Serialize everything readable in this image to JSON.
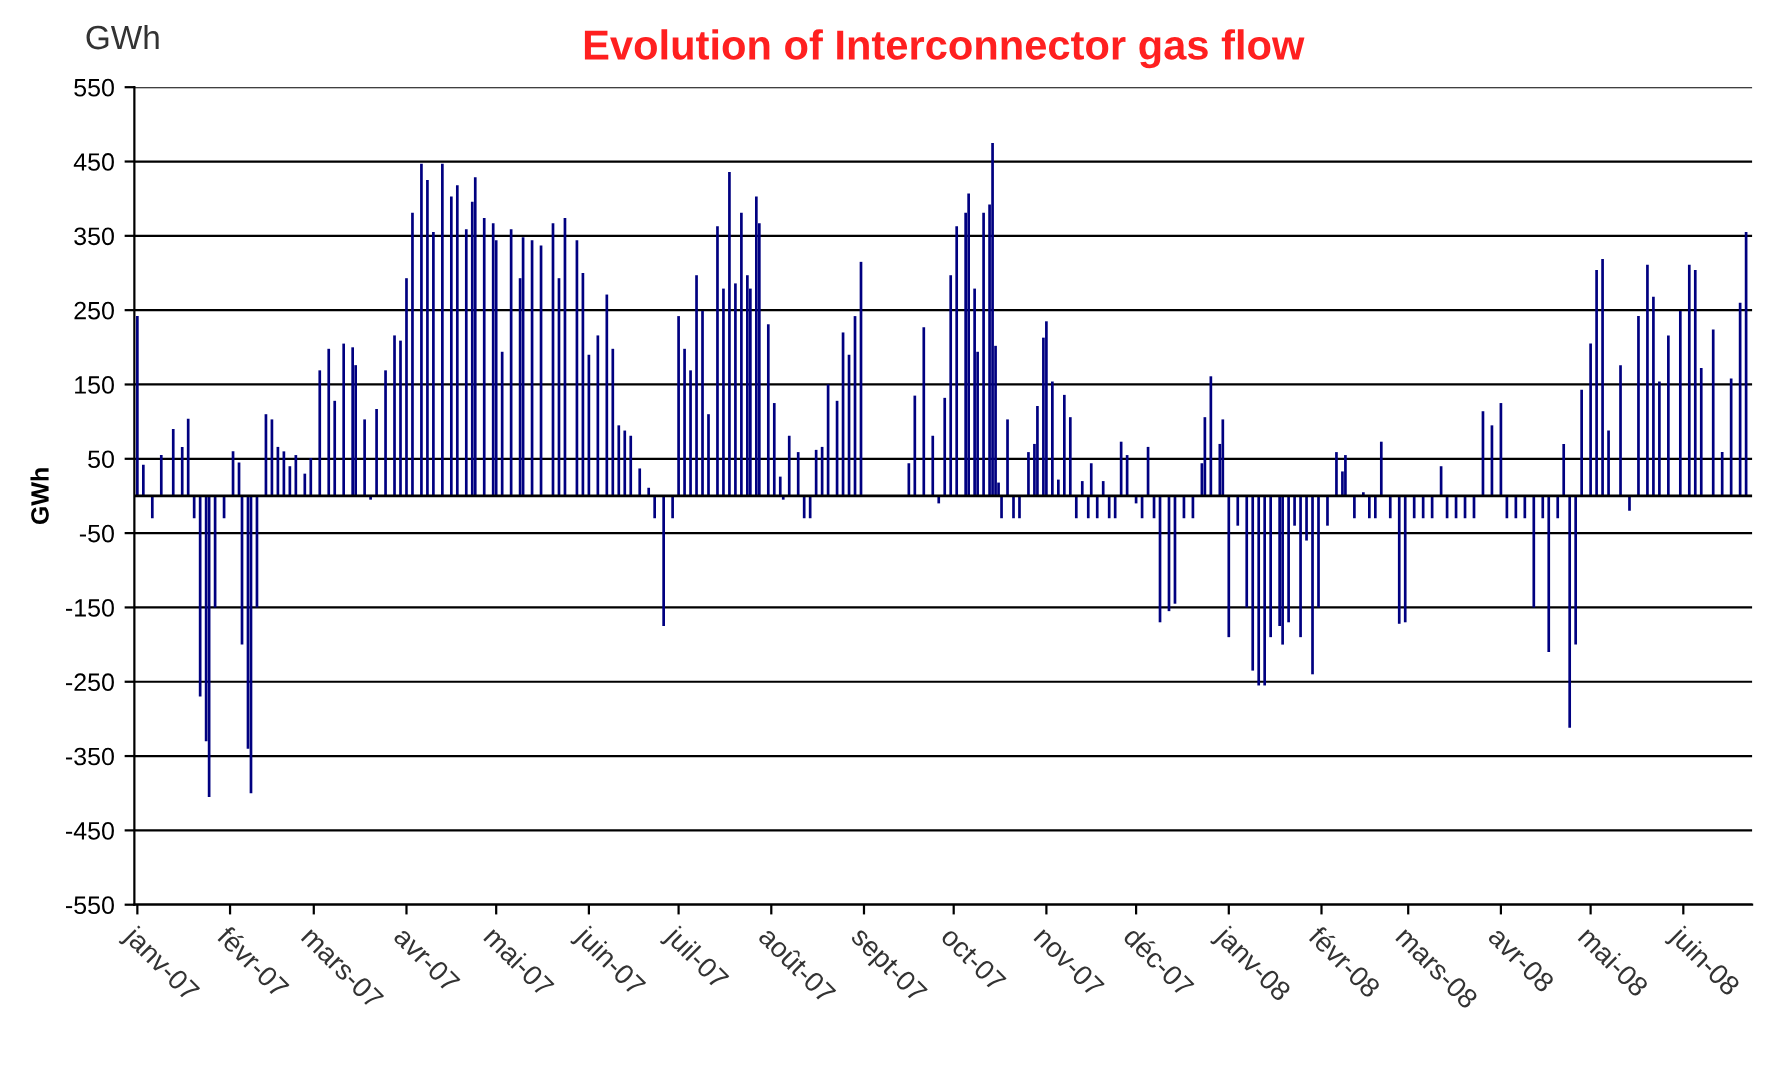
{
  "chart_data": {
    "type": "bar",
    "title": "Evolution of Interconnector gas flow",
    "ylabel": "GWh",
    "annotations": [
      "GWh"
    ],
    "color": "#000080",
    "x": [
      "2007-01-01",
      "2007-01-03",
      "2007-01-06",
      "2007-01-09",
      "2007-01-13",
      "2007-01-16",
      "2007-01-18",
      "2007-01-20",
      "2007-01-22",
      "2007-01-24",
      "2007-01-25",
      "2007-01-27",
      "2007-01-30",
      "2007-02-02",
      "2007-02-04",
      "2007-02-05",
      "2007-02-07",
      "2007-02-08",
      "2007-02-10",
      "2007-02-13",
      "2007-02-15",
      "2007-02-17",
      "2007-02-19",
      "2007-02-21",
      "2007-02-23",
      "2007-02-26",
      "2007-02-28",
      "2007-03-03",
      "2007-03-06",
      "2007-03-08",
      "2007-03-11",
      "2007-03-14",
      "2007-03-15",
      "2007-03-18",
      "2007-03-20",
      "2007-03-22",
      "2007-03-25",
      "2007-03-28",
      "2007-03-30",
      "2007-04-01",
      "2007-04-03",
      "2007-04-06",
      "2007-04-08",
      "2007-04-10",
      "2007-04-13",
      "2007-04-16",
      "2007-04-18",
      "2007-04-21",
      "2007-04-23",
      "2007-04-24",
      "2007-04-27",
      "2007-04-30",
      "2007-05-01",
      "2007-05-03",
      "2007-05-06",
      "2007-05-09",
      "2007-05-10",
      "2007-05-13",
      "2007-05-16",
      "2007-05-20",
      "2007-05-22",
      "2007-05-24",
      "2007-05-28",
      "2007-05-30",
      "2007-06-01",
      "2007-06-04",
      "2007-06-07",
      "2007-06-09",
      "2007-06-11",
      "2007-06-13",
      "2007-06-15",
      "2007-06-18",
      "2007-06-21",
      "2007-06-23",
      "2007-06-26",
      "2007-06-29",
      "2007-07-01",
      "2007-07-03",
      "2007-07-05",
      "2007-07-07",
      "2007-07-09",
      "2007-07-11",
      "2007-07-14",
      "2007-07-16",
      "2007-07-18",
      "2007-07-20",
      "2007-07-22",
      "2007-07-24",
      "2007-07-25",
      "2007-07-27",
      "2007-07-28",
      "2007-07-31",
      "2007-08-02",
      "2007-08-04",
      "2007-08-05",
      "2007-08-07",
      "2007-08-10",
      "2007-08-12",
      "2007-08-14",
      "2007-08-16",
      "2007-08-18",
      "2007-08-20",
      "2007-08-23",
      "2007-08-25",
      "2007-08-27",
      "2007-08-29",
      "2007-08-31",
      "2007-09-16",
      "2007-09-18",
      "2007-09-21",
      "2007-09-24",
      "2007-09-26",
      "2007-09-28",
      "2007-09-30",
      "2007-10-02",
      "2007-10-05",
      "2007-10-06",
      "2007-10-08",
      "2007-10-09",
      "2007-10-11",
      "2007-10-13",
      "2007-10-14",
      "2007-10-15",
      "2007-10-16",
      "2007-10-17",
      "2007-10-19",
      "2007-10-21",
      "2007-10-23",
      "2007-10-26",
      "2007-10-28",
      "2007-10-29",
      "2007-10-31",
      "2007-11-01",
      "2007-11-03",
      "2007-11-05",
      "2007-11-07",
      "2007-11-09",
      "2007-11-11",
      "2007-11-13",
      "2007-11-15",
      "2007-11-16",
      "2007-11-18",
      "2007-11-20",
      "2007-11-22",
      "2007-11-24",
      "2007-11-26",
      "2007-11-28",
      "2007-12-01",
      "2007-12-03",
      "2007-12-05",
      "2007-12-07",
      "2007-12-09",
      "2007-12-12",
      "2007-12-14",
      "2007-12-17",
      "2007-12-20",
      "2007-12-23",
      "2007-12-24",
      "2007-12-26",
      "2007-12-29",
      "2007-12-30",
      "2008-01-01",
      "2008-01-04",
      "2008-01-07",
      "2008-01-09",
      "2008-01-11",
      "2008-01-13",
      "2008-01-15",
      "2008-01-18",
      "2008-01-19",
      "2008-01-21",
      "2008-01-23",
      "2008-01-25",
      "2008-01-27",
      "2008-01-29",
      "2008-01-31",
      "2008-02-03",
      "2008-02-06",
      "2008-02-08",
      "2008-02-09",
      "2008-02-12",
      "2008-02-15",
      "2008-02-17",
      "2008-02-19",
      "2008-02-21",
      "2008-02-24",
      "2008-02-27",
      "2008-02-29",
      "2008-03-03",
      "2008-03-06",
      "2008-03-09",
      "2008-03-12",
      "2008-03-14",
      "2008-03-17",
      "2008-03-20",
      "2008-03-23",
      "2008-03-26",
      "2008-03-29",
      "2008-04-01",
      "2008-04-03",
      "2008-04-06",
      "2008-04-09",
      "2008-04-12",
      "2008-04-15",
      "2008-04-17",
      "2008-04-20",
      "2008-04-22",
      "2008-04-24",
      "2008-04-26",
      "2008-04-28",
      "2008-05-01",
      "2008-05-03",
      "2008-05-05",
      "2008-05-07",
      "2008-05-11",
      "2008-05-14",
      "2008-05-17",
      "2008-05-20",
      "2008-05-22",
      "2008-05-24",
      "2008-05-27",
      "2008-05-31",
      "2008-06-03",
      "2008-06-05",
      "2008-06-07",
      "2008-06-11",
      "2008-06-14",
      "2008-06-17",
      "2008-06-20",
      "2008-06-22"
    ],
    "values": [
      242,
      42,
      -30,
      55,
      90,
      66,
      104,
      -30,
      -270,
      -330,
      -405,
      -150,
      -30,
      60,
      45,
      -200,
      -340,
      -400,
      -150,
      110,
      103,
      66,
      60,
      40,
      55,
      30,
      51,
      169,
      198,
      128,
      205,
      200,
      176,
      103,
      -5,
      117,
      169,
      216,
      209,
      293,
      381,
      447,
      425,
      355,
      447,
      403,
      418,
      359,
      396,
      429,
      374,
      367,
      344,
      194,
      359,
      293,
      348,
      344,
      337,
      367,
      293,
      374,
      344,
      300,
      190,
      216,
      271,
      198,
      95,
      88,
      81,
      37,
      11,
      -30,
      -175,
      -30,
      242,
      198,
      169,
      297,
      249,
      110,
      363,
      279,
      436,
      286,
      381,
      297,
      279,
      403,
      367,
      231,
      125,
      26,
      -5,
      81,
      59,
      -30,
      -30,
      62,
      66,
      150,
      128,
      220,
      190,
      242,
      315,
      44,
      135,
      227,
      81,
      -10,
      132,
      297,
      363,
      381,
      407,
      279,
      194,
      381,
      392,
      475,
      202,
      18,
      -30,
      103,
      -30,
      -30,
      59,
      70,
      121,
      213,
      235,
      154,
      22,
      136,
      106,
      -30,
      20,
      -30,
      44,
      -30,
      20,
      -30,
      -30,
      73,
      55,
      -10,
      -30,
      66,
      -30,
      -170,
      -155,
      -145,
      -30,
      -30,
      44,
      106,
      161,
      70,
      103,
      -190,
      -40,
      -150,
      -235,
      -255,
      -255,
      -190,
      -175,
      -200,
      -170,
      -40,
      -190,
      -60,
      -240,
      -150,
      -40,
      59,
      33,
      55,
      -30,
      5,
      -30,
      -30,
      73,
      -30,
      -172,
      -170,
      -30,
      -30,
      -30,
      40,
      -30,
      -30,
      -30,
      -30,
      114,
      95,
      125,
      -30,
      -30,
      -30,
      -150,
      -30,
      -210,
      -30,
      70,
      -312,
      -200,
      143,
      205,
      304,
      319,
      88,
      176,
      -20,
      242,
      311,
      268,
      154,
      216,
      249,
      311,
      304,
      172,
      224,
      59,
      158,
      260,
      355
    ],
    "xlim": [
      "2006-12-31",
      "2008-06-24"
    ],
    "xticks": [
      {
        "value": "2007-01-01",
        "label": "janv-07"
      },
      {
        "value": "2007-02-01",
        "label": "févr-07"
      },
      {
        "value": "2007-03-01",
        "label": "mars-07"
      },
      {
        "value": "2007-04-01",
        "label": "avr-07"
      },
      {
        "value": "2007-05-01",
        "label": "mai-07"
      },
      {
        "value": "2007-06-01",
        "label": "juin-07"
      },
      {
        "value": "2007-07-01",
        "label": "juil-07"
      },
      {
        "value": "2007-08-01",
        "label": "août-07"
      },
      {
        "value": "2007-09-01",
        "label": "sept-07"
      },
      {
        "value": "2007-10-01",
        "label": "oct-07"
      },
      {
        "value": "2007-11-01",
        "label": "nov-07"
      },
      {
        "value": "2007-12-01",
        "label": "déc-07"
      },
      {
        "value": "2008-01-01",
        "label": "janv-08"
      },
      {
        "value": "2008-02-01",
        "label": "févr-08"
      },
      {
        "value": "2008-03-01",
        "label": "mars-08"
      },
      {
        "value": "2008-04-01",
        "label": "avr-08"
      },
      {
        "value": "2008-05-01",
        "label": "mai-08"
      },
      {
        "value": "2008-06-01",
        "label": "juin-08"
      }
    ],
    "ylim": [
      -550,
      550
    ],
    "yticks": [
      -550,
      -450,
      -350,
      -250,
      -150,
      -50,
      50,
      150,
      250,
      350,
      450,
      550
    ],
    "grid": "y",
    "legend": false
  }
}
